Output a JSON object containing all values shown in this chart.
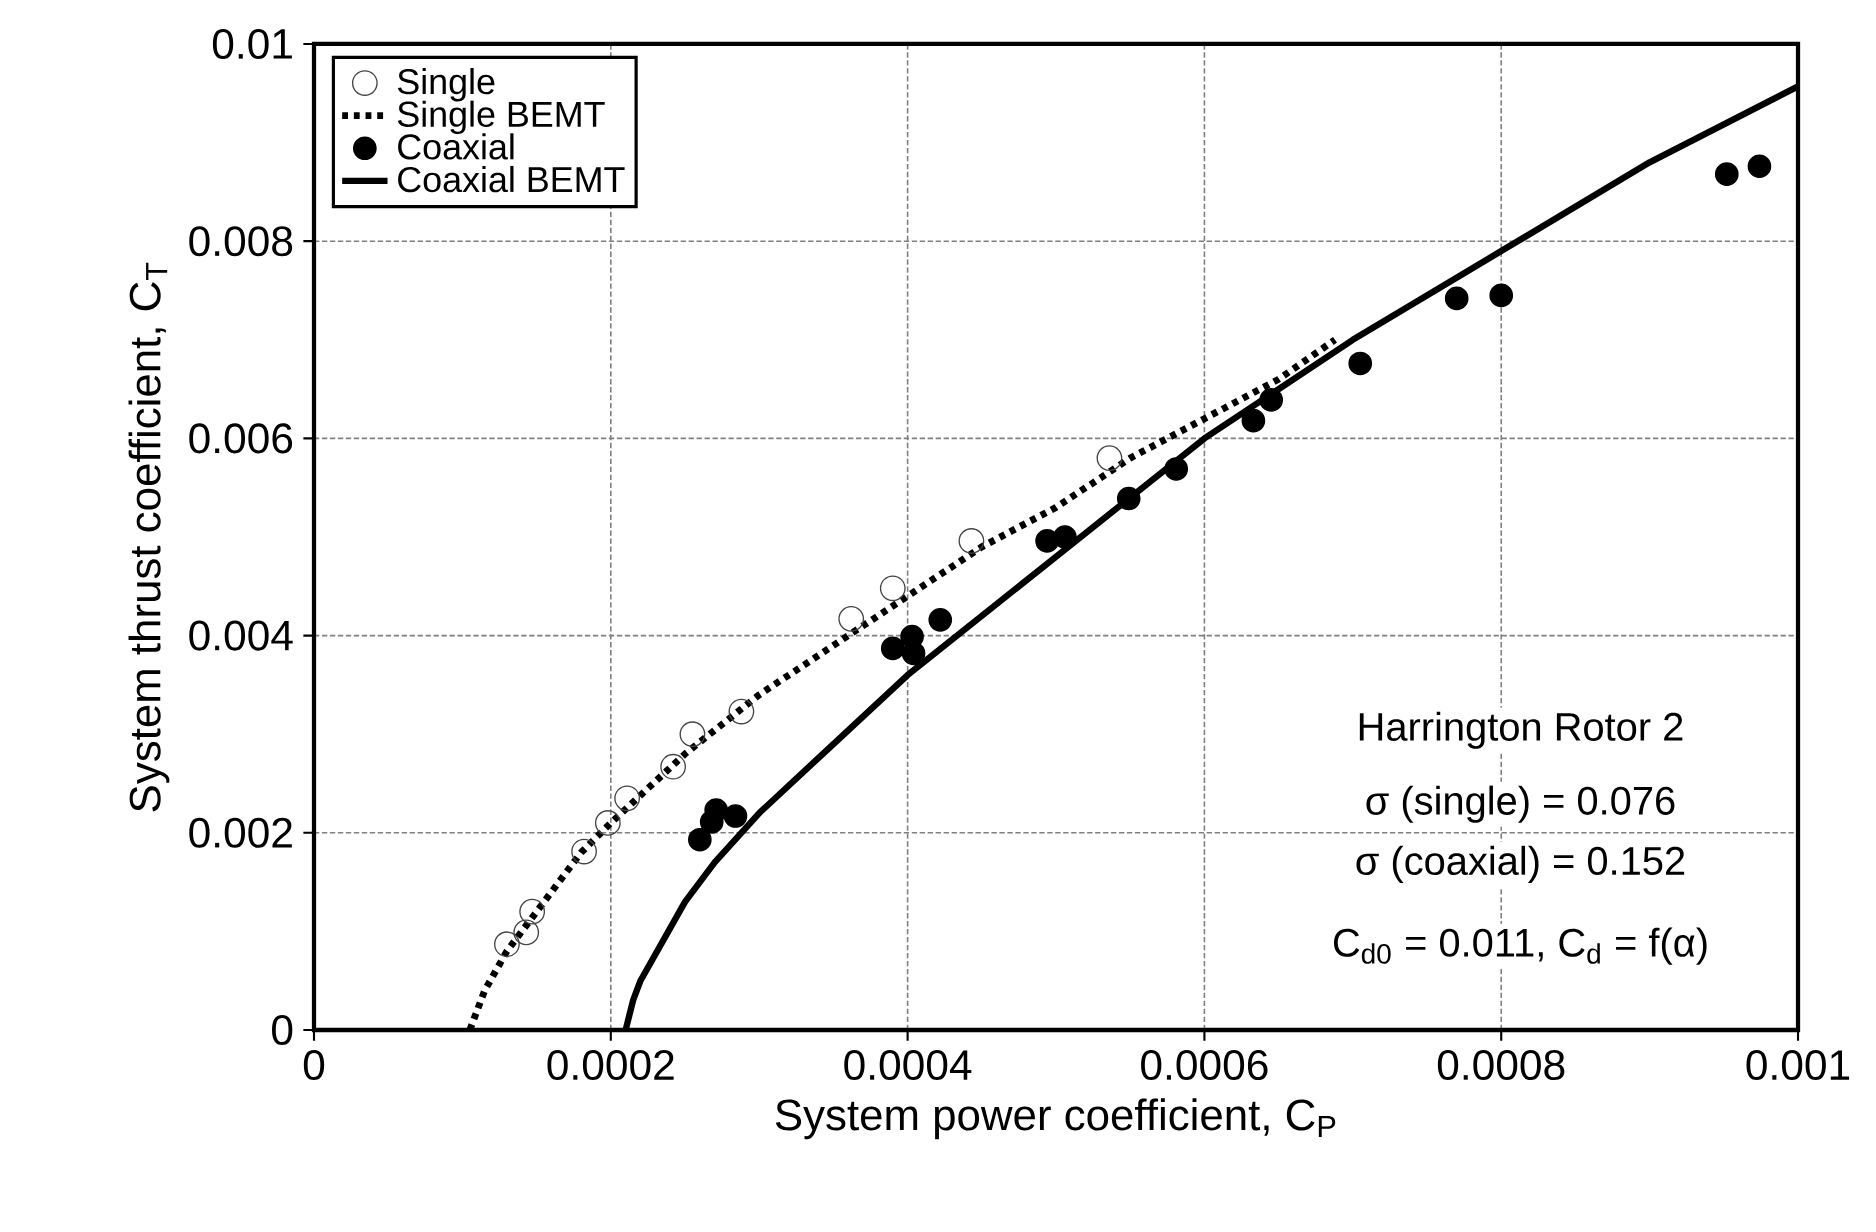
{
  "chart_data": {
    "type": "scatter",
    "xlabel": "System power coefficient, C$_{P}$",
    "ylabel": "System thrust coefficient, C$_{T}$",
    "xlim": [
      0,
      0.001
    ],
    "ylim": [
      0,
      0.01
    ],
    "xticks": [
      0,
      0.0002,
      0.0004,
      0.0006,
      0.0008,
      0.001
    ],
    "yticks": [
      0,
      0.002,
      0.004,
      0.006,
      0.008,
      0.01
    ],
    "grid": true,
    "legend": "top left",
    "series": [
      {
        "name": "Single",
        "marker": "circle",
        "color": "#444444",
        "x": [
          0.00013,
          0.000143,
          0.000147,
          0.000182,
          0.000198,
          0.000211,
          0.000242,
          0.000255,
          0.000288,
          0.000362,
          0.00039,
          0.000443,
          0.000536
        ],
        "values": [
          0.00087,
          0.00099,
          0.0012,
          0.00181,
          0.0021,
          0.00235,
          0.00267,
          0.003,
          0.00323,
          0.00417,
          0.00448,
          0.00496,
          0.0058
        ]
      },
      {
        "name": "Single BEMT",
        "type": "line",
        "line_style": "dotted",
        "marker": "none",
        "color": "#000000",
        "x": [
          0.000105,
          0.000115,
          0.00013,
          0.00015,
          0.00018,
          0.0002,
          0.00025,
          0.0003,
          0.00035,
          0.0004,
          0.00045,
          0.0005,
          0.00055,
          0.0006,
          0.00065,
          0.000688
        ],
        "values": [
          0,
          0.0004,
          0.0008,
          0.0012,
          0.0018,
          0.0021,
          0.0028,
          0.0034,
          0.0039,
          0.0044,
          0.0049,
          0.0053,
          0.0058,
          0.0062,
          0.0066,
          0.007
        ]
      },
      {
        "name": "Coaxial",
        "marker": "circle",
        "color": "#000000",
        "x": [
          0.00026,
          0.000268,
          0.000271,
          0.000284,
          0.00039,
          0.000404,
          0.000403,
          0.000422,
          0.000494,
          0.000506,
          0.000549,
          0.000581,
          0.000633,
          0.000645,
          0.000705,
          0.00077,
          0.0008,
          0.000952,
          0.000974
        ],
        "values": [
          0.00193,
          0.00211,
          0.00223,
          0.00217,
          0.00387,
          0.00382,
          0.00399,
          0.00416,
          0.00496,
          0.005,
          0.00539,
          0.00569,
          0.00618,
          0.00639,
          0.00676,
          0.00742,
          0.00745,
          0.00868,
          0.00876
        ]
      },
      {
        "name": "Coaxial BEMT",
        "type": "line",
        "line_style": "solid",
        "marker": "none",
        "color": "#000000",
        "x": [
          0.00021,
          0.000215,
          0.00022,
          0.000235,
          0.00025,
          0.00027,
          0.0003,
          0.00035,
          0.0004,
          0.0005,
          0.0006,
          0.0007,
          0.0008,
          0.0009,
          0.001
        ],
        "values": [
          0,
          0.0003,
          0.0005,
          0.0009,
          0.0013,
          0.0017,
          0.0022,
          0.0029,
          0.0036,
          0.0048,
          0.006,
          0.007,
          0.0079,
          0.0088,
          0.00957
        ]
      }
    ],
    "annotations": [
      "Harrington Rotor 2",
      "σ (single) = 0.076",
      "σ (coaxial) = 0.152",
      "C$_{d0}$ = 0.011, C$_{d}$ = f(α)"
    ]
  }
}
